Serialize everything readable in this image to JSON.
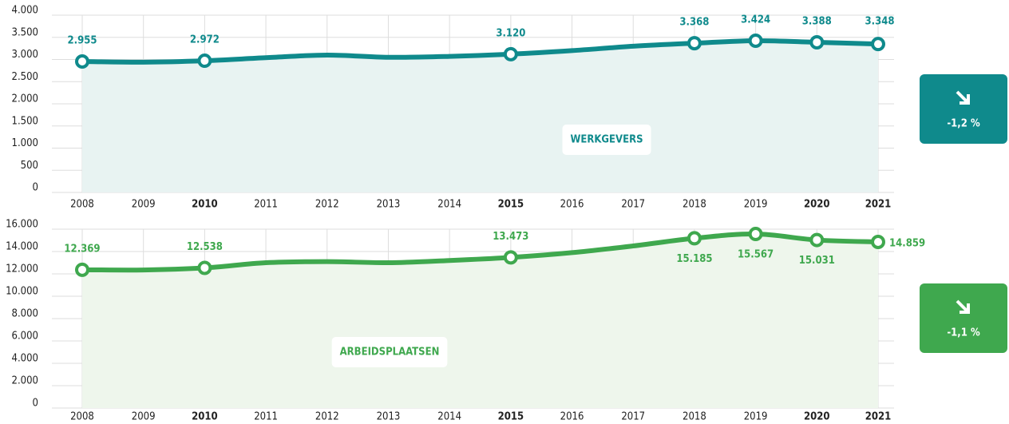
{
  "chart_data": [
    {
      "type": "line",
      "color": "#0f8a8c",
      "fill": "#e8f3f2",
      "label": "WERKGEVERS",
      "change": "-1,2 %",
      "categories": [
        "2008",
        "2009",
        "2010",
        "2011",
        "2012",
        "2013",
        "2014",
        "2015",
        "2016",
        "2017",
        "2018",
        "2019",
        "2020",
        "2021"
      ],
      "emphasis": [
        false,
        false,
        true,
        false,
        false,
        false,
        false,
        true,
        false,
        false,
        false,
        false,
        true,
        true
      ],
      "values": [
        2955,
        2940,
        2972,
        3040,
        3100,
        3050,
        3070,
        3120,
        3200,
        3300,
        3368,
        3424,
        3388,
        3348
      ],
      "value_labels": [
        "2.955",
        null,
        "2.972",
        null,
        null,
        null,
        null,
        "3.120",
        null,
        null,
        "3.368",
        "3.424",
        "3.388",
        "3.348"
      ],
      "markers": [
        true,
        false,
        true,
        false,
        false,
        false,
        false,
        true,
        false,
        false,
        true,
        true,
        true,
        true
      ],
      "ylim": [
        0,
        4000
      ],
      "yticks": [
        0,
        500,
        {
          "value": 1000,
          "label": "1.000"
        },
        {
          "value": 1500,
          "label": "1.500"
        },
        {
          "value": 2000,
          "label": "2.000"
        },
        {
          "value": 2500,
          "label": "2.500"
        },
        {
          "value": 3000,
          "label": "3.000"
        },
        {
          "value": 3500,
          "label": "3.500"
        },
        {
          "value": 4000,
          "label": "4.000"
        }
      ],
      "grid": true
    },
    {
      "type": "line",
      "color": "#3fa84e",
      "fill": "#eef6ec",
      "label": "ARBEIDSPLAATSEN",
      "change": "-1,1 %",
      "categories": [
        "2008",
        "2009",
        "2010",
        "2011",
        "2012",
        "2013",
        "2014",
        "2015",
        "2016",
        "2017",
        "2018",
        "2019",
        "2020",
        "2021"
      ],
      "emphasis": [
        false,
        false,
        true,
        false,
        false,
        false,
        false,
        true,
        false,
        false,
        false,
        false,
        true,
        true
      ],
      "values": [
        12369,
        12350,
        12538,
        13000,
        13100,
        13000,
        13200,
        13473,
        13900,
        14500,
        15185,
        15567,
        15031,
        14859
      ],
      "value_labels": [
        "12.369",
        null,
        "12.538",
        null,
        null,
        null,
        null,
        "13.473",
        null,
        null,
        "15.185",
        "15.567",
        "15.031",
        "14.859"
      ],
      "markers": [
        true,
        false,
        true,
        false,
        false,
        false,
        false,
        true,
        false,
        false,
        true,
        true,
        true,
        true
      ],
      "ylim": [
        0,
        16000
      ],
      "yticks": [
        0,
        {
          "value": 2000,
          "label": "2.000"
        },
        {
          "value": 4000,
          "label": "4.000"
        },
        {
          "value": 6000,
          "label": "6.000"
        },
        {
          "value": 8000,
          "label": "8.000"
        },
        {
          "value": 10000,
          "label": "10.000"
        },
        {
          "value": 12000,
          "label": "12.000"
        },
        {
          "value": 14000,
          "label": "14.000"
        },
        {
          "value": 16000,
          "label": "16.000"
        }
      ],
      "grid": true
    }
  ]
}
